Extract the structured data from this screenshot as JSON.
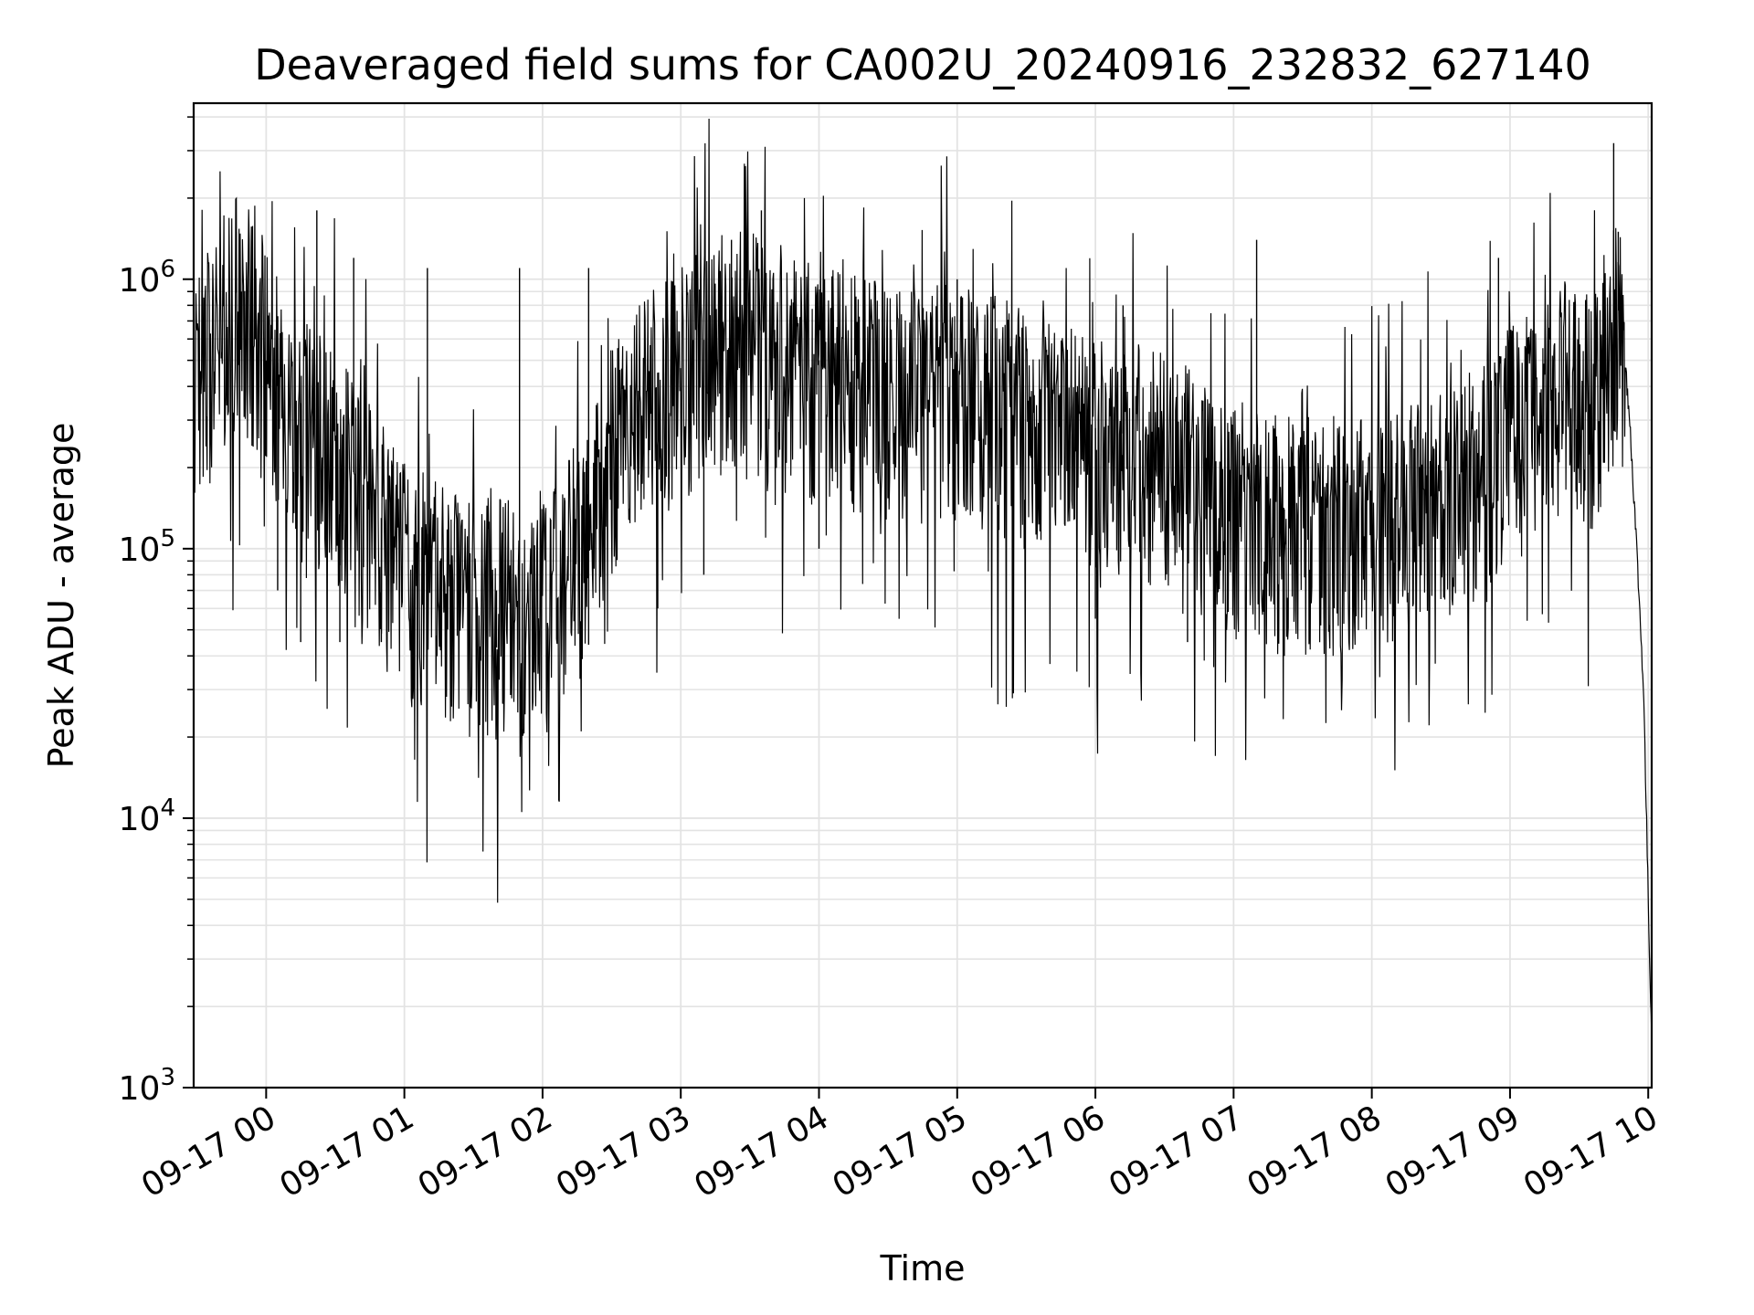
{
  "chart_data": {
    "type": "line",
    "title": "Deaveraged field sums for CA002U_20240916_232832_627140",
    "xlabel": "Time",
    "ylabel": "Peak ADU - average",
    "yscale": "log",
    "ylim": [
      1000,
      4500000
    ],
    "xlim": [
      "2024-09-16 23:28:32",
      "2024-09-17 10:01:30"
    ],
    "grid": true,
    "line_color": "#000000",
    "x_ticks": [
      "09-17 00",
      "09-17 01",
      "09-17 02",
      "09-17 03",
      "09-17 04",
      "09-17 05",
      "09-17 06",
      "09-17 07",
      "09-17 08",
      "09-17 09",
      "09-17 10"
    ],
    "y_ticks": [
      {
        "value": 1000,
        "base": "10",
        "exp": "3"
      },
      {
        "value": 10000,
        "base": "10",
        "exp": "4"
      },
      {
        "value": 100000,
        "base": "10",
        "exp": "5"
      },
      {
        "value": 1000000,
        "base": "10",
        "exp": "6"
      }
    ],
    "series": [
      {
        "points": [
          [
            "2024-09-16 23:28:32",
            450000
          ],
          [
            "2024-09-16 23:35",
            600000
          ],
          [
            "2024-09-16 23:42",
            850000
          ],
          [
            "2024-09-16 23:48",
            900000
          ],
          [
            "2024-09-16 23:55",
            800000
          ],
          [
            "2024-09-17 00:00",
            600000
          ],
          [
            "2024-09-17 00:10",
            400000
          ],
          [
            "2024-09-17 00:20",
            300000
          ],
          [
            "2024-09-17 00:30",
            250000
          ],
          [
            "2024-09-17 00:40",
            180000
          ],
          [
            "2024-09-17 00:50",
            130000
          ],
          [
            "2024-09-17 01:00",
            100000
          ],
          [
            "2024-09-17 01:10",
            85000
          ],
          [
            "2024-09-17 01:20",
            80000
          ],
          [
            "2024-09-17 01:30",
            75000
          ],
          [
            "2024-09-17 01:40",
            70000
          ],
          [
            "2024-09-17 01:50",
            70000
          ],
          [
            "2024-09-17 02:00",
            80000
          ],
          [
            "2024-09-17 02:10",
            100000
          ],
          [
            "2024-09-17 02:20",
            150000
          ],
          [
            "2024-09-17 02:30",
            250000
          ],
          [
            "2024-09-17 02:40",
            350000
          ],
          [
            "2024-09-17 02:50",
            450000
          ],
          [
            "2024-09-17 03:00",
            500000
          ],
          [
            "2024-09-17 03:15",
            650000
          ],
          [
            "2024-09-17 03:30",
            700000
          ],
          [
            "2024-09-17 03:45",
            550000
          ],
          [
            "2024-09-17 04:00",
            500000
          ],
          [
            "2024-09-17 04:20",
            450000
          ],
          [
            "2024-09-17 04:40",
            420000
          ],
          [
            "2024-09-17 05:00",
            450000
          ],
          [
            "2024-09-17 05:20",
            380000
          ],
          [
            "2024-09-17 05:40",
            320000
          ],
          [
            "2024-09-17 06:00",
            280000
          ],
          [
            "2024-09-17 06:20",
            260000
          ],
          [
            "2024-09-17 06:40",
            220000
          ],
          [
            "2024-09-17 07:00",
            160000
          ],
          [
            "2024-09-17 07:20",
            140000
          ],
          [
            "2024-09-17 07:40",
            140000
          ],
          [
            "2024-09-17 08:00",
            150000
          ],
          [
            "2024-09-17 08:20",
            160000
          ],
          [
            "2024-09-17 08:40",
            190000
          ],
          [
            "2024-09-17 09:00",
            300000
          ],
          [
            "2024-09-17 09:20",
            450000
          ],
          [
            "2024-09-17 09:35",
            400000
          ],
          [
            "2024-09-17 09:45",
            700000
          ],
          [
            "2024-09-17 09:48",
            800000
          ],
          [
            "2024-09-17 09:52",
            300000
          ],
          [
            "2024-09-17 09:55",
            100000
          ],
          [
            "2024-09-17 09:58",
            30000
          ],
          [
            "2024-09-17 10:00",
            5000
          ],
          [
            "2024-09-17 10:01:30",
            1500
          ]
        ],
        "spikes": [
          [
            "2024-09-16 23:47",
            1500000
          ],
          [
            "2024-09-17 00:22",
            1800000
          ],
          [
            "2024-09-17 00:38",
            1200000
          ],
          [
            "2024-09-17 01:10",
            1100000
          ],
          [
            "2024-09-17 01:50",
            1100000
          ],
          [
            "2024-09-17 02:20",
            1100000
          ],
          [
            "2024-09-17 03:22",
            1400000
          ],
          [
            "2024-09-17 03:35",
            1800000
          ],
          [
            "2024-09-17 05:00",
            1000000
          ],
          [
            "2024-09-17 06:12",
            800000
          ],
          [
            "2024-09-17 07:10",
            1400000
          ],
          [
            "2024-09-17 08:55",
            1200000
          ],
          [
            "2024-09-17 09:45",
            3200000
          ],
          [
            "2024-09-17 09:47",
            1500000
          ]
        ],
        "dips": [
          [
            "2024-09-17 00:05",
            70000
          ],
          [
            "2024-09-17 00:15",
            45000
          ],
          [
            "2024-09-17 00:32",
            45000
          ],
          [
            "2024-09-17 00:50",
            45000
          ],
          [
            "2024-09-17 01:40",
            43000
          ],
          [
            "2024-09-17 01:50",
            42000
          ],
          [
            "2024-09-17 02:20",
            44000
          ],
          [
            "2024-09-17 02:50",
            60000
          ],
          [
            "2024-09-17 03:10",
            80000
          ],
          [
            "2024-09-17 04:00",
            100000
          ],
          [
            "2024-09-17 06:00",
            55000
          ],
          [
            "2024-09-17 06:40",
            45000
          ],
          [
            "2024-09-17 07:22",
            40000
          ],
          [
            "2024-09-17 07:40",
            40000
          ],
          [
            "2024-09-17 08:10",
            55000
          ]
        ]
      }
    ]
  }
}
